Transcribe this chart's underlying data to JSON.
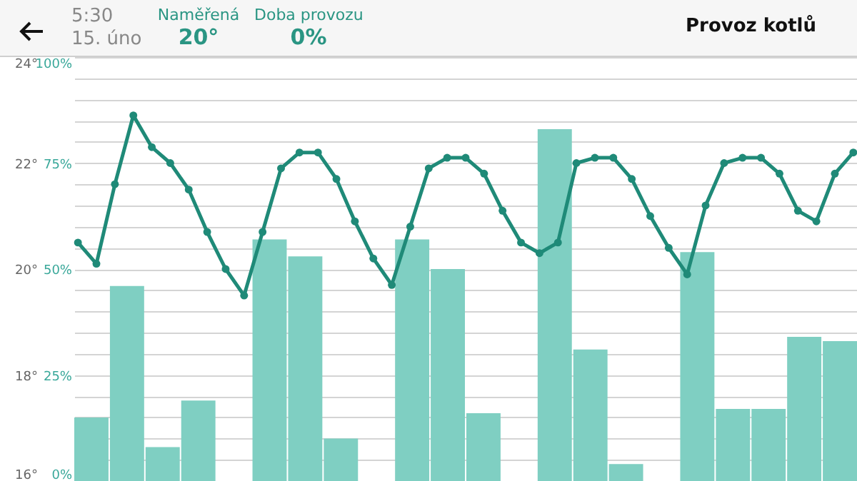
{
  "chart_data": [
    {
      "type": "bar",
      "title": "Provoz kotlů",
      "annotations": [
        "5:30",
        "15. úno",
        "Naměřená",
        "20°",
        "Doba provozu",
        "0%"
      ],
      "categories": [
        null,
        null,
        null,
        null,
        null,
        null,
        null,
        null,
        null,
        null,
        null,
        null,
        null,
        null,
        null,
        null,
        null,
        null,
        null,
        null,
        null,
        null
      ],
      "tick_labels": "y",
      "grid": "y",
      "ylim": [
        0,
        100
      ],
      "yticks": [
        {
          "value": 0,
          "label": "0%"
        },
        {
          "value": 5,
          "label": null
        },
        {
          "value": 10,
          "label": null
        },
        {
          "value": 15,
          "label": null
        },
        {
          "value": 20,
          "label": null
        },
        {
          "value": 25,
          "label": "25%"
        },
        {
          "value": 30,
          "label": null
        },
        {
          "value": 35,
          "label": null
        },
        {
          "value": 40,
          "label": null
        },
        {
          "value": 45,
          "label": null
        },
        {
          "value": 50,
          "label": "50%"
        },
        {
          "value": 55,
          "label": null
        },
        {
          "value": 60,
          "label": null
        },
        {
          "value": 65,
          "label": null
        },
        {
          "value": 70,
          "label": null
        },
        {
          "value": 75,
          "label": "75%"
        },
        {
          "value": 80,
          "label": null
        },
        {
          "value": 85,
          "label": null
        },
        {
          "value": 90,
          "label": null
        },
        {
          "value": 95,
          "label": null
        },
        {
          "value": 100,
          "label": "100%"
        }
      ],
      "series": [
        {
          "color": "#7fcfc2",
          "values": [
            15,
            46,
            8,
            19,
            0,
            57,
            53,
            10,
            0,
            57,
            50,
            16,
            0,
            83,
            31,
            4,
            0,
            54,
            17,
            17,
            34,
            33
          ]
        }
      ]
    },
    {
      "type": "line",
      "categories": [
        null,
        null,
        null,
        null,
        null,
        null,
        null,
        null,
        null,
        null,
        null,
        null,
        null,
        null,
        null,
        null,
        null,
        null,
        null,
        null,
        null,
        null,
        null,
        null,
        null,
        null,
        null,
        null,
        null,
        null,
        null,
        null,
        null,
        null,
        null,
        null,
        null,
        null,
        null,
        null,
        null,
        null,
        null
      ],
      "tick_labels": "y",
      "marker": "circle",
      "line_style": "solid",
      "ylim": [
        16,
        24
      ],
      "yticks": [
        {
          "value": 16,
          "label": "16°"
        },
        {
          "value": 18,
          "label": "18°"
        },
        {
          "value": 20,
          "label": "20°"
        },
        {
          "value": 22,
          "label": "22°"
        },
        {
          "value": 24,
          "label": "24°"
        }
      ],
      "series": [
        {
          "color": "#1f8a78",
          "values": [
            20.5,
            20.1,
            21.6,
            22.9,
            22.3,
            22.0,
            21.5,
            20.7,
            20.0,
            19.5,
            20.7,
            21.9,
            22.2,
            22.2,
            21.7,
            20.9,
            20.2,
            19.7,
            20.8,
            21.9,
            22.1,
            22.1,
            21.8,
            21.1,
            20.5,
            20.3,
            20.5,
            22.0,
            22.1,
            22.1,
            21.7,
            21.0,
            20.4,
            19.9,
            21.2,
            22.0,
            22.1,
            22.1,
            21.8,
            21.1,
            20.9,
            21.8,
            22.2
          ]
        }
      ]
    }
  ]
}
